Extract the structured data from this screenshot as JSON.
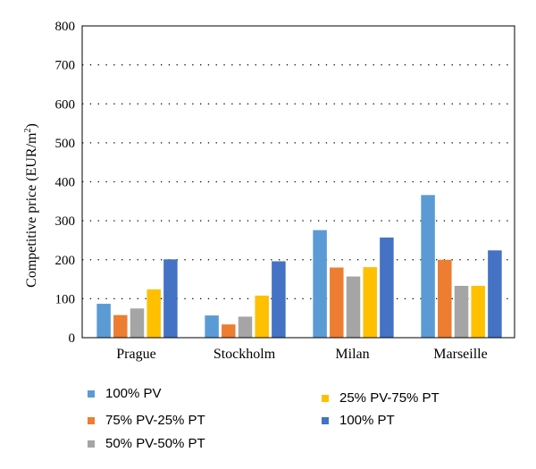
{
  "chart_data": {
    "type": "bar",
    "title": "",
    "xlabel": "",
    "ylabel": "Competitive price (EUR/m²)",
    "ylabel_parts": [
      "Competitive price (EUR/m",
      "2",
      ")"
    ],
    "ylim": [
      0,
      800
    ],
    "yticks": [
      0,
      100,
      200,
      300,
      400,
      500,
      600,
      700,
      800
    ],
    "grid": "dotted horizontal",
    "legend_position": "bottom",
    "categories": [
      "Prague",
      "Stockholm",
      "Milan",
      "Marseille"
    ],
    "series": [
      {
        "name": "100% PV",
        "color": "#5b9bd5",
        "values": [
          87,
          57,
          276,
          366
        ]
      },
      {
        "name": "75% PV-25% PT",
        "color": "#ed7d31",
        "values": [
          58,
          34,
          180,
          200
        ]
      },
      {
        "name": "50% PV-50% PT",
        "color": "#a5a5a5",
        "values": [
          75,
          54,
          157,
          133
        ]
      },
      {
        "name": "25% PV-75% PT",
        "color": "#ffc000",
        "values": [
          124,
          108,
          181,
          133
        ]
      },
      {
        "name": "100% PT",
        "color": "#4472c4",
        "values": [
          201,
          196,
          257,
          224
        ]
      }
    ]
  }
}
